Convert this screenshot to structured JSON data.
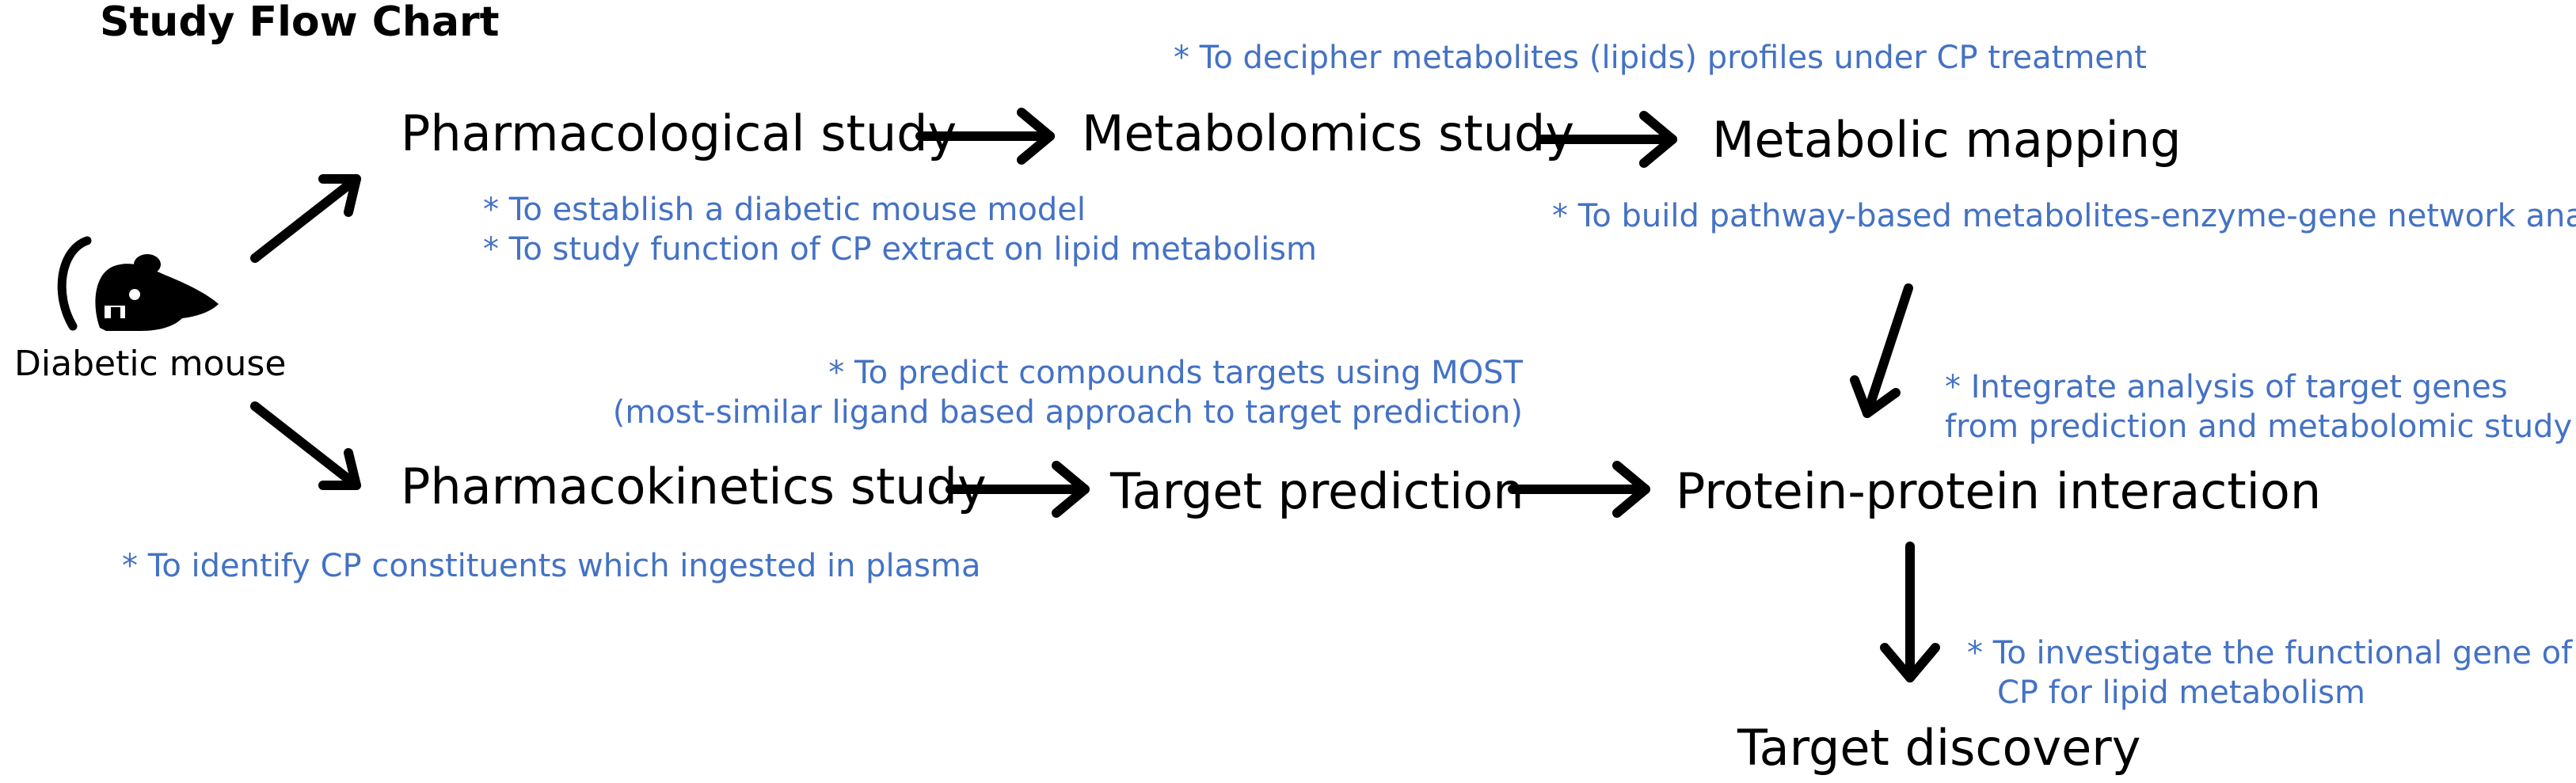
{
  "title": "Study Flow Chart",
  "mouse": {
    "icon": "mouse-icon",
    "label": "Diabetic mouse"
  },
  "nodes": {
    "pharmacological": "Pharmacological study",
    "metabolomics": "Metabolomics study",
    "metabolic_mapping": "Metabolic mapping",
    "pharmacokinetics": "Pharmacokinetics study",
    "target_prediction": "Target prediction",
    "ppi": "Protein-protein interaction",
    "target_discovery": "Target discovery"
  },
  "notes": {
    "metabolomics": "* To decipher metabolites (lipids) profiles under CP treatment",
    "pharmacological_1": "* To establish a diabetic mouse model",
    "pharmacological_2": "* To study function of CP extract on lipid metabolism",
    "mapping": "* To build pathway-based metabolites-enzyme-gene network analysis",
    "prediction_1": "* To predict compounds targets using MOST",
    "prediction_2": "(most-similar ligand based approach to target prediction)",
    "integrate_1": "* Integrate analysis of target genes",
    "integrate_2": "from prediction and metabolomic study",
    "pharmacokinetics": "* To identify CP constituents which ingested in plasma",
    "discovery_1": "* To investigate the functional gene of",
    "discovery_2": "CP for lipid metabolism"
  },
  "colors": {
    "text": "#000000",
    "note": "#4472c4",
    "arrow": "#000000"
  }
}
